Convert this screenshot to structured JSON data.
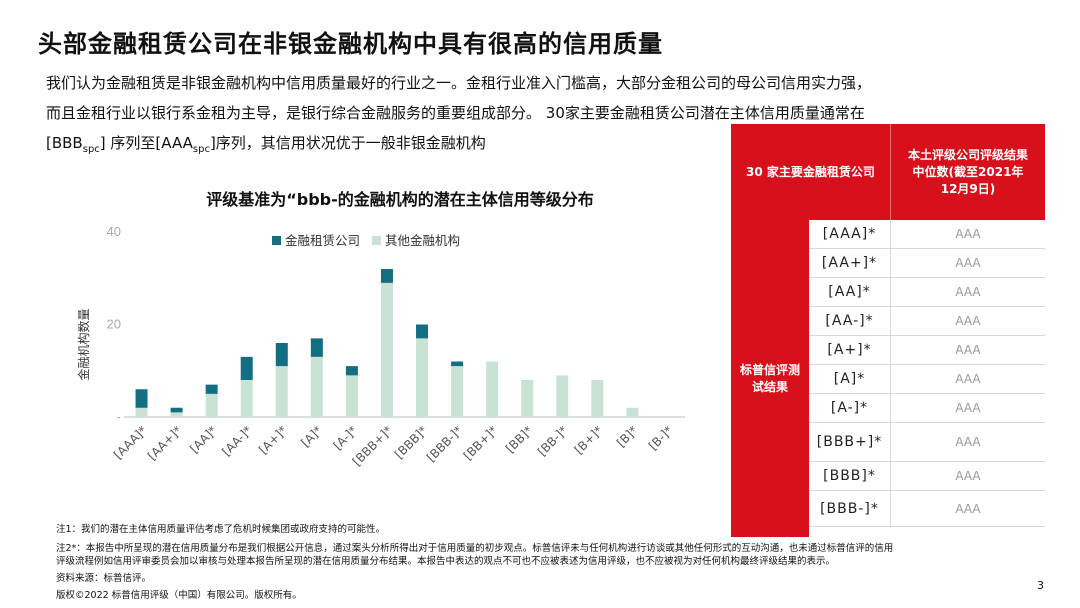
{
  "page_title": "头部金融租赁公司在非银金融机构中具有很高的信用质量",
  "intro": {
    "line1": "我们认为金融租赁是非银金融机构中信用质量最好的行业之一。金租行业准入门槛高，大部分金租公司的母公司信用实力强，",
    "line2": "而且金租行业以银行系金租为主导，是银行综合金融服务的重要组成部分。 30家主要金融租赁公司潜在主体信用质量通常在",
    "line3_a": "[BBB",
    "line3_sub1": "spc",
    "line3_b": "] 序列至[AAA",
    "line3_sub2": "spc",
    "line3_c": "]序列，其信用状况优于一般非银金融机构"
  },
  "chart_data": {
    "type": "bar",
    "stacked": true,
    "title": "评级基准为“bbb-的金融机构的潜在主体信用等级分布",
    "xlabel": "",
    "ylabel": "金融机构数量",
    "categories": [
      "[AAA]*",
      "[AA+]*",
      "[AA]*",
      "[AA-]*",
      "[A+]*",
      "[A]*",
      "[A-]*",
      "[BBB+]*",
      "[BBB]*",
      "[BBB-]*",
      "[BB+]*",
      "[BB]*",
      "[BB-]*",
      "[B+]*",
      "[B]*",
      "[B-]*"
    ],
    "series": [
      {
        "name": "其他金融机构",
        "color": "#c8e3d6",
        "values": [
          2,
          1,
          5,
          8,
          11,
          13,
          9,
          29,
          17,
          11,
          12,
          8,
          9,
          8,
          2,
          0
        ]
      },
      {
        "name": "金融租赁公司",
        "color": "#136e82",
        "values": [
          4,
          1,
          2,
          5,
          5,
          4,
          2,
          3,
          3,
          1,
          0,
          0,
          0,
          0,
          0,
          0
        ]
      }
    ],
    "ylim": [
      0,
      40
    ],
    "yticks": [
      "40",
      "20",
      "-"
    ],
    "grid": false,
    "legend": "top"
  },
  "table": {
    "header_col1": "30 家主要金融租赁公司",
    "header_col2": "本土评级公司评级结果中位数(截至2021年12月9日)",
    "row_group_label": "标普信评测试结果",
    "rows": [
      {
        "rating": "[AAA]*",
        "value": "AAA"
      },
      {
        "rating": "[AA+]*",
        "value": "AAA"
      },
      {
        "rating": "[AA]*",
        "value": "AAA"
      },
      {
        "rating": "[AA-]*",
        "value": "AAA"
      },
      {
        "rating": "[A+]*",
        "value": "AAA"
      },
      {
        "rating": "[A]*",
        "value": "AAA"
      },
      {
        "rating": "[A-]*",
        "value": "AAA"
      },
      {
        "rating": "[BBB+]*",
        "value": "AAA"
      },
      {
        "rating": "[BBB]*",
        "value": "AAA"
      },
      {
        "rating": "[BBB-]*",
        "value": "AAA"
      }
    ],
    "colors": {
      "red": "#d8101b"
    }
  },
  "notes": {
    "note1": "注1：我们的潜在主体信用质量评估考虑了危机时候集团或政府支持的可能性。",
    "note2_line1": "注2*：本报告中所呈现的潜在信用质量分布是我们根据公开信息，通过案头分析所得出对于信用质量的初步观点。标普信评未与任何机构进行访谈或其他任何形式的互动沟通，也未通过标普信评的信用",
    "note2_line2": "评级流程例如信用评审委员会加以审核与处理本报告所呈现的潜在信用质量分布结果。本报告中表达的观点不可也不应被表述为信用评级，也不应被视为对任何机构最终评级结果的表示。",
    "source": "资料来源：标普信评。",
    "copyright": "版权©2022  标普信用评级（中国）有限公司。版权所有。"
  },
  "page_number": "3"
}
